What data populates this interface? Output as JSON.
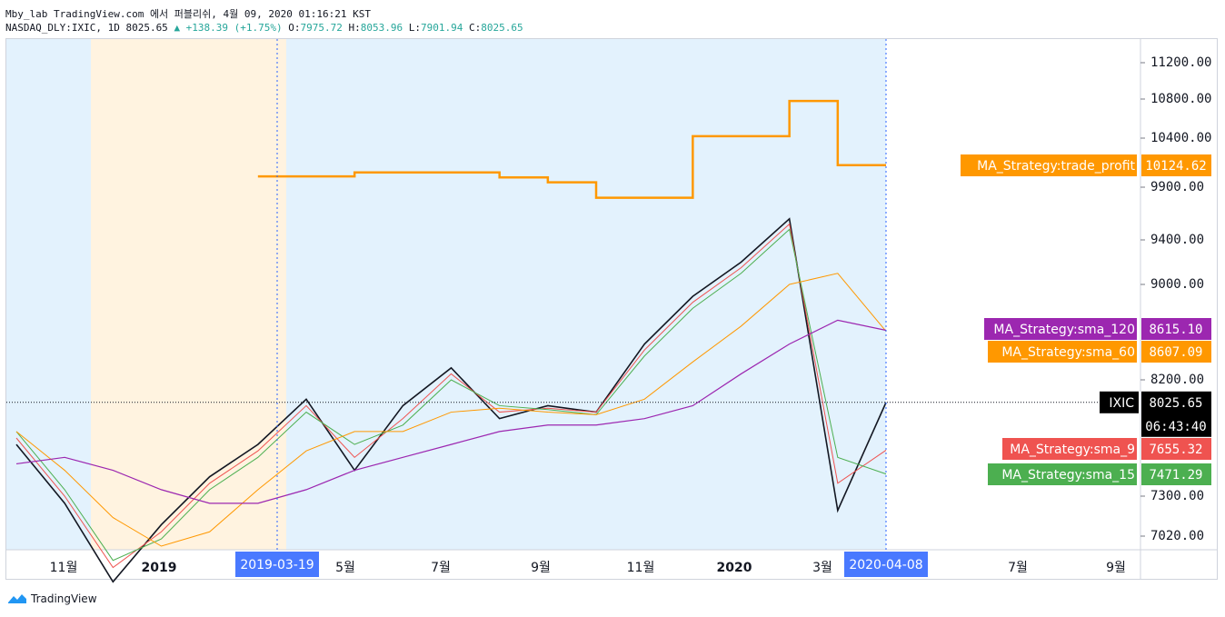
{
  "header": {
    "line1": "Mby_lab TradingView.com 에서 퍼블리쉬, 4월 09, 2020 01:16:21 KST",
    "symbol": "NASDAQ_DLY:IXIC, 1D 8025.65",
    "change": "▲ +138.39 (+1.75%)",
    "open_label": "O:",
    "open": "7975.72",
    "high_label": "H:",
    "high": "8053.96",
    "low_label": "L:",
    "low": "7901.94",
    "close_label": "C:",
    "close": "8025.65"
  },
  "footer": {
    "brand": "TradingView"
  },
  "colors": {
    "price": "#131722",
    "trade_profit": "#ff9800",
    "sma_120": "#9c27b0",
    "sma_60": "#ff9800",
    "sma_9": "#ef5350",
    "sma_15": "#4caf50",
    "bg_blue": "#e3f2fd",
    "bg_orange": "#fff3e0"
  },
  "chart_data": {
    "type": "line",
    "title": "NASDAQ_DLY:IXIC, 1D",
    "y_axis_ticks": [
      "11200.00",
      "10800.00",
      "10400.00",
      "9900.00",
      "9400.00",
      "9000.00",
      "8200.00",
      "7300.00",
      "7020.00"
    ],
    "x_axis_ticks": [
      "11월",
      "2019",
      "5월",
      "7월",
      "9월",
      "11월",
      "2020",
      "3월",
      "7월",
      "9월"
    ],
    "x_markers": [
      "2019-03-19",
      "2020-04-08"
    ],
    "last_price": {
      "label": "IXIC",
      "value": "8025.65",
      "timer": "06:43:40"
    },
    "x": [
      "2018-10",
      "2018-11",
      "2018-12",
      "2019-01",
      "2019-02",
      "2019-03",
      "2019-04",
      "2019-05",
      "2019-06",
      "2019-07",
      "2019-08",
      "2019-09",
      "2019-10",
      "2019-11",
      "2019-12",
      "2020-01",
      "2020-02",
      "2020-03",
      "2020-04"
    ],
    "series": [
      {
        "name": "IXIC",
        "values": [
          7700,
          7250,
          6700,
          7100,
          7450,
          7700,
          8050,
          7500,
          8000,
          8300,
          7900,
          8000,
          7950,
          8500,
          8900,
          9200,
          9600,
          7200,
          8025
        ]
      },
      {
        "name": "MA_Strategy:sma_9",
        "values": [
          7750,
          7300,
          6800,
          7050,
          7400,
          7650,
          8000,
          7600,
          7900,
          8250,
          7950,
          7980,
          7950,
          8450,
          8850,
          9150,
          9550,
          7400,
          7655.32
        ]
      },
      {
        "name": "MA_Strategy:sma_15",
        "values": [
          7800,
          7350,
          6850,
          7000,
          7350,
          7600,
          7950,
          7700,
          7850,
          8200,
          8000,
          7970,
          7930,
          8400,
          8800,
          9100,
          9500,
          7600,
          7471.29
        ]
      },
      {
        "name": "MA_Strategy:sma_60",
        "values": [
          7800,
          7500,
          7150,
          6950,
          7050,
          7350,
          7650,
          7800,
          7800,
          7950,
          7980,
          7950,
          7930,
          8050,
          8350,
          8650,
          9000,
          9100,
          8607.09
        ]
      },
      {
        "name": "MA_Strategy:sma_120",
        "values": [
          7550,
          7600,
          7500,
          7350,
          7250,
          7250,
          7350,
          7500,
          7600,
          7700,
          7800,
          7850,
          7850,
          7900,
          8000,
          8250,
          8500,
          8700,
          8615.1
        ]
      },
      {
        "name": "MA_Strategy:trade_profit",
        "values": [
          null,
          null,
          null,
          null,
          null,
          10010,
          10010,
          10050,
          10050,
          10050,
          10000,
          9950,
          9800,
          9800,
          10420,
          10420,
          10780,
          10124.62,
          10124.62
        ]
      }
    ],
    "labels": [
      {
        "name": "MA_Strategy:trade_profit",
        "value": "10124.62"
      },
      {
        "name": "MA_Strategy:sma_120",
        "value": "8615.10"
      },
      {
        "name": "MA_Strategy:sma_60",
        "value": "8607.09"
      },
      {
        "name": "MA_Strategy:sma_9",
        "value": "7655.32"
      },
      {
        "name": "MA_Strategy:sma_15",
        "value": "7471.29"
      }
    ]
  }
}
